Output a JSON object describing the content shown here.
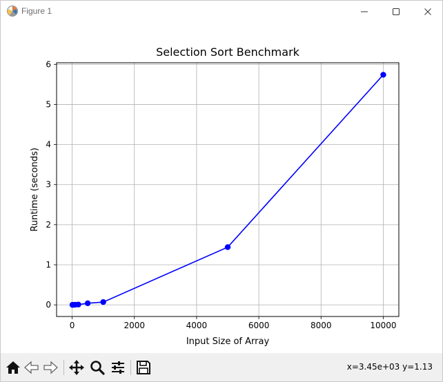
{
  "window": {
    "title": "Figure 1"
  },
  "chart_data": {
    "type": "line",
    "title": "Selection Sort Benchmark",
    "xlabel": "Input Size of Array",
    "ylabel": "Runtime (seconds)",
    "x": [
      10,
      50,
      100,
      200,
      500,
      1000,
      5000,
      10000
    ],
    "series": [
      {
        "values": [
          0.0001,
          0.0015,
          0.003,
          0.008,
          0.04,
          0.07,
          1.44,
          5.74
        ],
        "color": "#0000ff",
        "marker": "circle"
      }
    ],
    "xlim": [
      -500,
      10500
    ],
    "ylim": [
      -0.29,
      6.04
    ],
    "xticks": [
      0,
      2000,
      4000,
      6000,
      8000,
      10000
    ],
    "yticks": [
      0,
      1,
      2,
      3,
      4,
      5,
      6
    ],
    "grid": true
  },
  "toolbar": {
    "icons": [
      "home-icon",
      "back-icon",
      "forward-icon",
      "pan-icon",
      "zoom-icon",
      "configure-icon",
      "save-icon"
    ],
    "coords": "x=3.45e+03 y=1.13"
  }
}
